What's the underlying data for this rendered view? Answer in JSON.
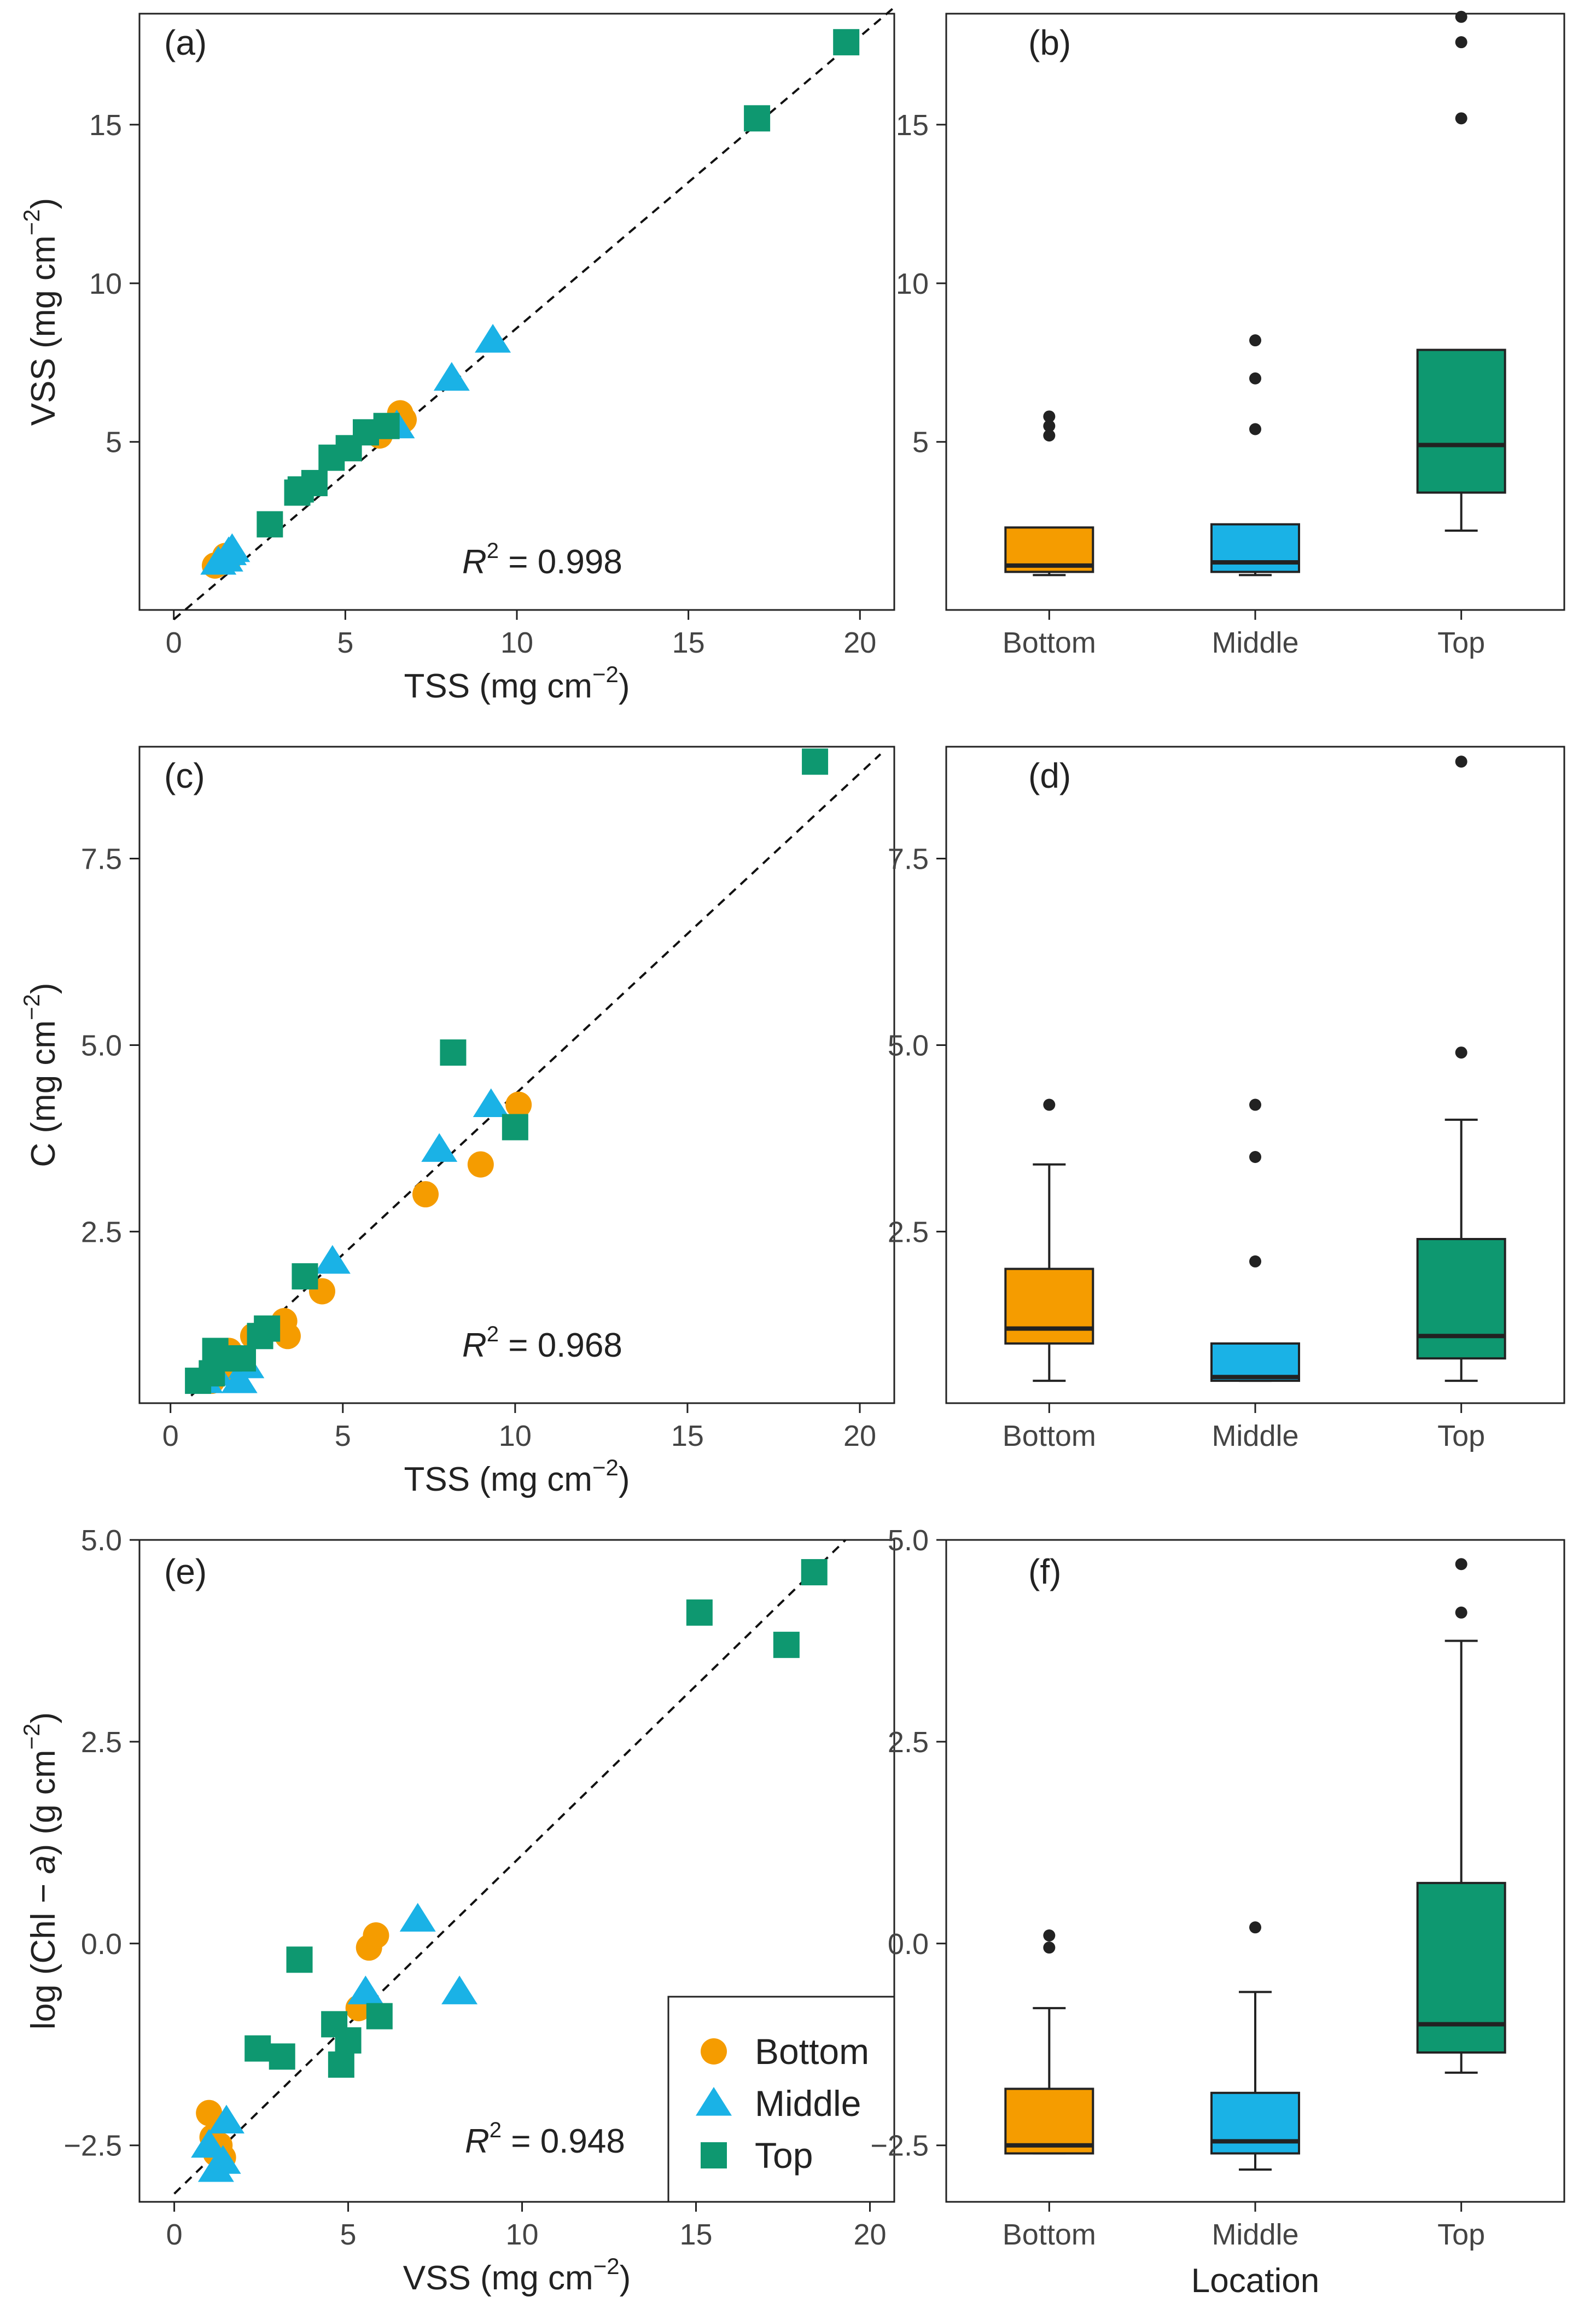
{
  "figure": {
    "panels": [
      {
        "label": "(a)"
      },
      {
        "label": "(b)"
      },
      {
        "label": "(c)"
      },
      {
        "label": "(d)"
      },
      {
        "label": "(e)"
      },
      {
        "label": "(f)"
      }
    ],
    "legend": {
      "items": [
        {
          "label": "Bottom",
          "shape": "circle",
          "color": "#F59C00"
        },
        {
          "label": "Middle",
          "shape": "triangle",
          "color": "#1AB2E6"
        },
        {
          "label": "Top",
          "shape": "square",
          "color": "#0E9870"
        }
      ]
    }
  },
  "chart_data": [
    {
      "panel": "(a)",
      "type": "scatter",
      "xlabel": "TSS (mg cm−2)",
      "ylabel": "VSS (mg cm−2)",
      "xlim": [
        -1,
        21
      ],
      "ylim": [
        -0.3,
        18.5
      ],
      "xticks": [
        "0",
        "5",
        "10",
        "15",
        "20"
      ],
      "yticks": [
        "5",
        "10",
        "15"
      ],
      "x_tick_values": [
        0,
        5,
        10,
        15,
        20
      ],
      "y_tick_values": [
        5,
        10,
        15
      ],
      "annotation": {
        "r2": "R² = 0.998",
        "prefix": "R",
        "sup": "2",
        "value": " = 0.998"
      },
      "fit_line": {
        "x": [
          0,
          21
        ],
        "y": [
          -0.6,
          18.7
        ]
      },
      "series": [
        {
          "name": "Bottom",
          "shape": "circle",
          "color": "#F59C00",
          "points": [
            [
              1.2,
              1.1
            ],
            [
              1.4,
              1.2
            ],
            [
              1.6,
              1.3
            ],
            [
              1.5,
              1.4
            ],
            [
              6.0,
              5.2
            ],
            [
              6.7,
              5.7
            ],
            [
              6.6,
              5.9
            ]
          ]
        },
        {
          "name": "Middle",
          "shape": "triangle",
          "color": "#1AB2E6",
          "points": [
            [
              1.3,
              1.2
            ],
            [
              1.5,
              1.3
            ],
            [
              1.6,
              1.5
            ],
            [
              1.7,
              1.6
            ],
            [
              6.5,
              5.5
            ],
            [
              8.1,
              7.0
            ],
            [
              9.3,
              8.2
            ]
          ]
        },
        {
          "name": "Top",
          "shape": "square",
          "color": "#0E9870",
          "points": [
            [
              2.8,
              2.4
            ],
            [
              3.6,
              3.4
            ],
            [
              3.7,
              3.5
            ],
            [
              4.1,
              3.7
            ],
            [
              4.6,
              4.5
            ],
            [
              5.1,
              4.8
            ],
            [
              5.6,
              5.3
            ],
            [
              6.2,
              5.5
            ],
            [
              17.0,
              15.2
            ],
            [
              19.6,
              17.6
            ]
          ]
        }
      ]
    },
    {
      "panel": "(b)",
      "type": "box",
      "xlabel": "",
      "ylabel": "",
      "ylim": [
        -0.3,
        18.5
      ],
      "yticks": [
        "5",
        "10",
        "15"
      ],
      "y_tick_values": [
        5,
        10,
        15
      ],
      "categories": [
        "Bottom",
        "Middle",
        "Top"
      ],
      "colors": [
        "#F59C00",
        "#1AB2E6",
        "#0E9870"
      ],
      "boxes": [
        {
          "q1": 0.9,
          "median": 1.1,
          "q3": 2.3,
          "low": 0.8,
          "high": 2.3,
          "outliers": [
            5.2,
            5.5,
            5.8
          ]
        },
        {
          "q1": 0.9,
          "median": 1.2,
          "q3": 2.4,
          "low": 0.8,
          "high": 2.4,
          "outliers": [
            5.4,
            7.0,
            8.2
          ]
        },
        {
          "q1": 3.4,
          "median": 4.9,
          "q3": 7.9,
          "low": 2.2,
          "high": 7.9,
          "outliers": [
            15.2,
            17.6,
            18.4
          ]
        }
      ]
    },
    {
      "panel": "(c)",
      "type": "scatter",
      "xlabel": "TSS (mg cm−2)",
      "ylabel": "C (mg cm−2)",
      "xlim": [
        -0.9,
        21
      ],
      "ylim": [
        0.2,
        9.0
      ],
      "xticks": [
        "0",
        "5",
        "10",
        "15",
        "20"
      ],
      "yticks": [
        "2.5",
        "5.0",
        "7.5"
      ],
      "x_tick_values": [
        0,
        5,
        10,
        15,
        20
      ],
      "y_tick_values": [
        2.5,
        5.0,
        7.5
      ],
      "annotation": {
        "r2": "R² = 0.968",
        "prefix": "R",
        "sup": "2",
        "value": " = 0.968"
      },
      "fit_line": {
        "x": [
          0.6,
          20.6
        ],
        "y": [
          0.3,
          8.9
        ]
      },
      "series": [
        {
          "name": "Bottom",
          "shape": "circle",
          "color": "#F59C00",
          "points": [
            [
              1.2,
              0.5
            ],
            [
              1.8,
              0.6
            ],
            [
              1.7,
              0.9
            ],
            [
              2.4,
              1.1
            ],
            [
              3.1,
              1.2
            ],
            [
              3.4,
              1.1
            ],
            [
              3.3,
              1.3
            ],
            [
              4.4,
              1.7
            ],
            [
              7.4,
              3.0
            ],
            [
              9.0,
              3.4
            ],
            [
              10.1,
              4.2
            ]
          ]
        },
        {
          "name": "Middle",
          "shape": "triangle",
          "color": "#1AB2E6",
          "points": [
            [
              1.0,
              0.5
            ],
            [
              1.3,
              0.6
            ],
            [
              2.0,
              0.5
            ],
            [
              2.2,
              0.7
            ],
            [
              4.7,
              2.1
            ],
            [
              7.8,
              3.6
            ],
            [
              9.3,
              4.2
            ]
          ]
        },
        {
          "name": "Top",
          "shape": "square",
          "color": "#0E9870",
          "points": [
            [
              0.8,
              0.5
            ],
            [
              1.2,
              0.6
            ],
            [
              1.3,
              0.9
            ],
            [
              1.7,
              0.8
            ],
            [
              2.1,
              0.8
            ],
            [
              2.6,
              1.1
            ],
            [
              2.8,
              1.2
            ],
            [
              3.9,
              1.9
            ],
            [
              8.2,
              4.9
            ],
            [
              10.0,
              3.9
            ],
            [
              18.7,
              8.8
            ]
          ]
        }
      ]
    },
    {
      "panel": "(d)",
      "type": "box",
      "xlabel": "",
      "ylabel": "",
      "ylim": [
        0.2,
        9.0
      ],
      "yticks": [
        "2.5",
        "5.0",
        "7.5"
      ],
      "y_tick_values": [
        2.5,
        5.0,
        7.5
      ],
      "categories": [
        "Bottom",
        "Middle",
        "Top"
      ],
      "colors": [
        "#F59C00",
        "#1AB2E6",
        "#0E9870"
      ],
      "boxes": [
        {
          "q1": 1.0,
          "median": 1.2,
          "q3": 2.0,
          "low": 0.5,
          "high": 3.4,
          "outliers": [
            4.2
          ]
        },
        {
          "q1": 0.5,
          "median": 0.55,
          "q3": 1.0,
          "low": 0.5,
          "high": 1.0,
          "outliers": [
            2.1,
            3.5,
            4.2
          ]
        },
        {
          "q1": 0.8,
          "median": 1.1,
          "q3": 2.4,
          "low": 0.5,
          "high": 4.0,
          "outliers": [
            4.9,
            8.8
          ]
        }
      ]
    },
    {
      "panel": "(e)",
      "type": "scatter",
      "xlabel": "VSS (mg cm−2)",
      "ylabel": "log (Chl − a) (g cm−2)",
      "ylabel_parts": {
        "prefix": "log (Chl − ",
        "italic": "a",
        "suffix": ") (g cm",
        "sup": "−2",
        "end": ")"
      },
      "xlim": [
        -1,
        20.7
      ],
      "ylim": [
        -3.2,
        5.0
      ],
      "xticks": [
        "0",
        "5",
        "10",
        "15",
        "20"
      ],
      "yticks": [
        "−2.5",
        "0.0",
        "2.5",
        "5.0"
      ],
      "x_tick_values": [
        0,
        5,
        10,
        15,
        20
      ],
      "y_tick_values": [
        -2.5,
        0.0,
        2.5,
        5.0
      ],
      "annotation": {
        "r2": "R² = 0.948",
        "prefix": "R",
        "sup": "2",
        "value": " = 0.948"
      },
      "fit_line": {
        "x": [
          0.0,
          19.3
        ],
        "y": [
          -3.1,
          5.0
        ]
      },
      "series": [
        {
          "name": "Bottom",
          "shape": "circle",
          "color": "#F59C00",
          "points": [
            [
              1.0,
              -2.1
            ],
            [
              1.1,
              -2.4
            ],
            [
              1.2,
              -2.6
            ],
            [
              1.3,
              -2.5
            ],
            [
              1.4,
              -2.65
            ],
            [
              5.3,
              -0.8
            ],
            [
              5.6,
              -0.05
            ],
            [
              5.8,
              0.1
            ]
          ]
        },
        {
          "name": "Middle",
          "shape": "triangle",
          "color": "#1AB2E6",
          "points": [
            [
              1.0,
              -2.5
            ],
            [
              1.2,
              -2.8
            ],
            [
              1.4,
              -2.7
            ],
            [
              1.5,
              -2.2
            ],
            [
              5.5,
              -0.6
            ],
            [
              7.0,
              0.3
            ],
            [
              8.2,
              -0.6
            ]
          ]
        },
        {
          "name": "Top",
          "shape": "square",
          "color": "#0E9870",
          "points": [
            [
              2.4,
              -1.3
            ],
            [
              3.1,
              -1.4
            ],
            [
              3.6,
              -0.2
            ],
            [
              4.6,
              -1.0
            ],
            [
              4.8,
              -1.5
            ],
            [
              5.0,
              -1.2
            ],
            [
              5.9,
              -0.9
            ],
            [
              15.1,
              4.1
            ],
            [
              17.6,
              3.7
            ],
            [
              18.4,
              4.6
            ]
          ]
        }
      ],
      "legend": true
    },
    {
      "panel": "(f)",
      "type": "box",
      "xlabel": "Location",
      "ylabel": "",
      "ylim": [
        -3.2,
        5.0
      ],
      "yticks": [
        "−2.5",
        "0.0",
        "2.5",
        "5.0"
      ],
      "y_tick_values": [
        -2.5,
        0.0,
        2.5,
        5.0
      ],
      "categories": [
        "Bottom",
        "Middle",
        "Top"
      ],
      "colors": [
        "#F59C00",
        "#1AB2E6",
        "#0E9870"
      ],
      "boxes": [
        {
          "q1": -2.6,
          "median": -2.5,
          "q3": -1.8,
          "low": -2.6,
          "high": -0.8,
          "outliers": [
            -0.05,
            0.1
          ]
        },
        {
          "q1": -2.6,
          "median": -2.45,
          "q3": -1.85,
          "low": -2.8,
          "high": -0.6,
          "outliers": [
            0.2
          ]
        },
        {
          "q1": -1.35,
          "median": -1.0,
          "q3": 0.75,
          "low": -1.6,
          "high": 3.75,
          "outliers": [
            4.1,
            4.7
          ]
        }
      ]
    }
  ]
}
